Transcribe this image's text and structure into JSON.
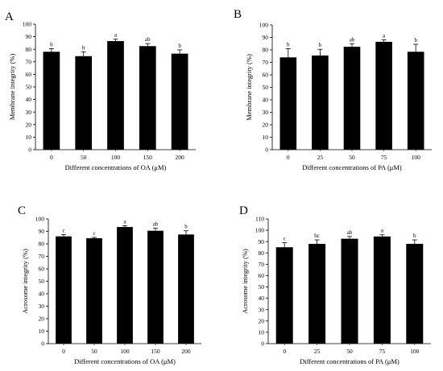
{
  "chart_data": [
    {
      "panel": "A",
      "type": "bar",
      "categories": [
        "0",
        "50",
        "100",
        "150",
        "200"
      ],
      "values": [
        78,
        74.5,
        86.5,
        82.5,
        76.5
      ],
      "errors": [
        2.5,
        3.5,
        1.5,
        2,
        3
      ],
      "significance": [
        "b",
        "b",
        "a",
        "ab",
        "b"
      ],
      "xlabel": "Different concentrations of OA (μM)",
      "ylabel": "Membrane integrity (%)",
      "ylim": [
        0,
        100
      ],
      "yticks": [
        "0",
        "10",
        "20",
        "30",
        "40",
        "50",
        "60",
        "70",
        "80",
        "90",
        "100"
      ],
      "bar_color": "#000000"
    },
    {
      "panel": "B",
      "type": "bar",
      "categories": [
        "0",
        "25",
        "50",
        "75",
        "100"
      ],
      "values": [
        74,
        75.5,
        82.5,
        86.5,
        78.5
      ],
      "errors": [
        7,
        5,
        2.5,
        1.5,
        6
      ],
      "significance": [
        "b",
        "b",
        "ab",
        "a",
        "b"
      ],
      "xlabel": "Different concentrations of PA (μM)",
      "ylabel": "Membrane integrity (%)",
      "ylim": [
        0,
        100
      ],
      "yticks": [
        "0",
        "10",
        "20",
        "30",
        "40",
        "50",
        "60",
        "70",
        "80",
        "90",
        "100"
      ],
      "bar_color": "#000000"
    },
    {
      "panel": "C",
      "type": "bar",
      "categories": [
        "0",
        "50",
        "100",
        "150",
        "200"
      ],
      "values": [
        86,
        84.5,
        93.5,
        90.5,
        87.5
      ],
      "errors": [
        1.5,
        0.7,
        1,
        2,
        3
      ],
      "significance": [
        "c",
        "c",
        "a",
        "ab",
        "b"
      ],
      "xlabel": "Different concentrations of OA (μM)",
      "ylabel": "Acrosome integrity (%)",
      "ylim": [
        0,
        100
      ],
      "yticks": [
        "0",
        "10",
        "20",
        "30",
        "40",
        "50",
        "60",
        "70",
        "80",
        "90",
        "100"
      ],
      "bar_color": "#000000"
    },
    {
      "panel": "D",
      "type": "bar",
      "categories": [
        "0",
        "25",
        "50",
        "75",
        "100"
      ],
      "values": [
        85,
        88,
        92.5,
        94.5,
        88
      ],
      "errors": [
        4,
        3.5,
        2,
        1.5,
        3.5
      ],
      "significance": [
        "c",
        "bc",
        "ab",
        "a",
        "b"
      ],
      "xlabel": "Different concentrations of PA (μM)",
      "ylabel": "Acrosome integrity (%)",
      "ylim": [
        0,
        110
      ],
      "yticks": [
        "0",
        "10",
        "20",
        "30",
        "40",
        "50",
        "60",
        "70",
        "80",
        "90",
        "100",
        "110"
      ],
      "bar_color": "#000000"
    }
  ]
}
